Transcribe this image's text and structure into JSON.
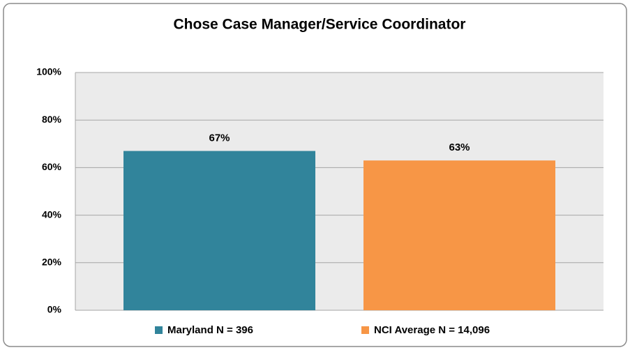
{
  "chart_data": {
    "type": "bar",
    "title": "Chose Case Manager/Service Coordinator",
    "categories": [
      null
    ],
    "series": [
      {
        "name": "Maryland N = 396",
        "color": "#31849b",
        "values": [
          67
        ],
        "value_labels": [
          "67%"
        ]
      },
      {
        "name": "NCI Average N = 14,096",
        "color": "#f79646",
        "values": [
          63
        ],
        "value_labels": [
          "63%"
        ]
      }
    ],
    "ylim": [
      0,
      100
    ],
    "yticks": [
      {
        "value": 0,
        "label": "0%"
      },
      {
        "value": 20,
        "label": "20%"
      },
      {
        "value": 40,
        "label": "40%"
      },
      {
        "value": 60,
        "label": "60%"
      },
      {
        "value": 80,
        "label": "80%"
      },
      {
        "value": 100,
        "label": "100%"
      }
    ],
    "grid": true,
    "legend": "bottom"
  }
}
